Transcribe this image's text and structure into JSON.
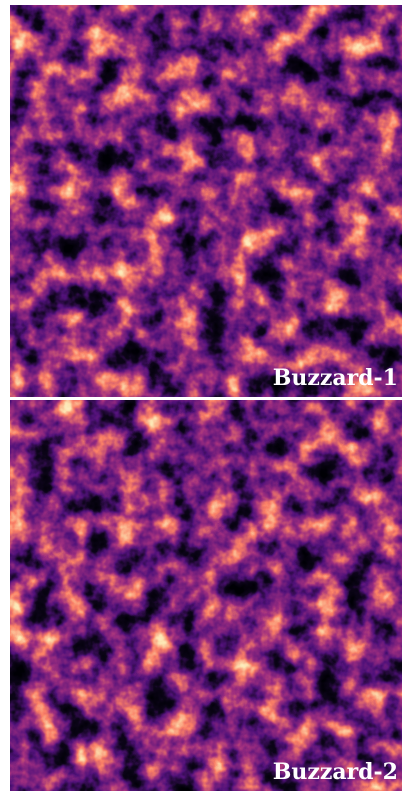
{
  "panels": [
    {
      "label": "Buzzard-1"
    },
    {
      "label": "Buzzard-2"
    }
  ]
}
